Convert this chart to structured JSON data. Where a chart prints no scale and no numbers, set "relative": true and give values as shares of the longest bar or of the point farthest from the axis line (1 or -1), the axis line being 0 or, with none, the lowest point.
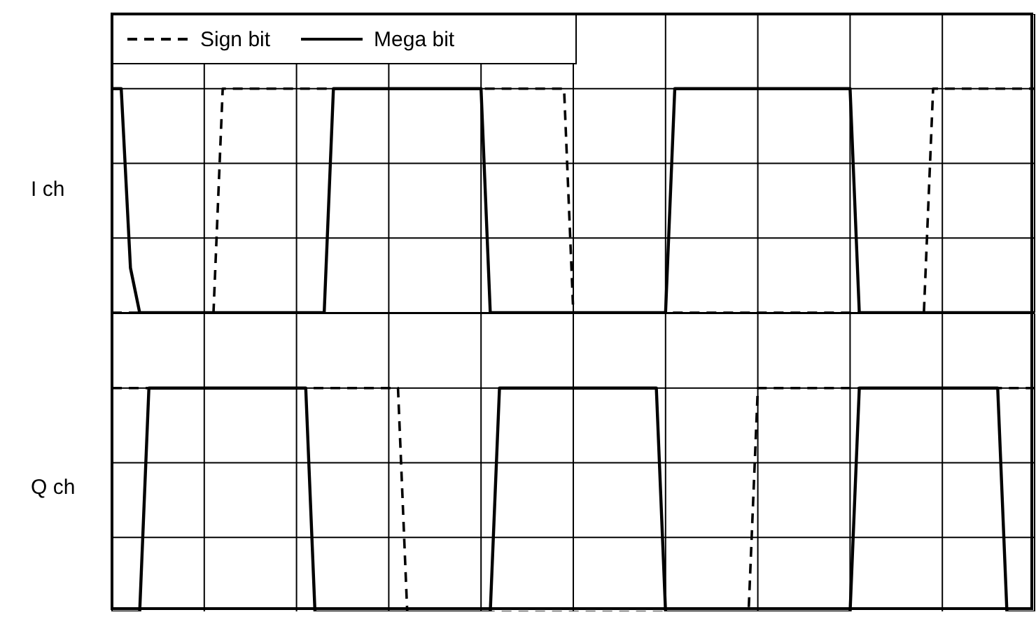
{
  "chart_data": [
    {
      "type": "line",
      "ylabel": "I ch",
      "relative": true,
      "grid": true,
      "legend": "top left",
      "categories": [
        null,
        null,
        null,
        null,
        null,
        null,
        null,
        null,
        null,
        null,
        null,
        null,
        null,
        null,
        null,
        null,
        null,
        null,
        null,
        null,
        null,
        null,
        null,
        null,
        null,
        null,
        null,
        null,
        null,
        null,
        null,
        null,
        null,
        null,
        null,
        null,
        null,
        null,
        null,
        null,
        null,
        null,
        null,
        null,
        null,
        null,
        null,
        null,
        null,
        null,
        null,
        null,
        null,
        null,
        null,
        null,
        null,
        null,
        null,
        null,
        null,
        null,
        null,
        null,
        null,
        null,
        null,
        null,
        null,
        null,
        null,
        null,
        null,
        null,
        null,
        null,
        null,
        null,
        null,
        null,
        null,
        null,
        null,
        null,
        null,
        null,
        null,
        null,
        null,
        null,
        null,
        null,
        null,
        null,
        null,
        null,
        null,
        null,
        null,
        null,
        null
      ],
      "series": [
        {
          "name": "Sign bit",
          "color": "#000000",
          "line_style": "dashed",
          "values": [
            0,
            0,
            0,
            0,
            0,
            0,
            0,
            0,
            0,
            0,
            0,
            0,
            1,
            1,
            1,
            1,
            1,
            1,
            1,
            1,
            1,
            1,
            1,
            1,
            1,
            1,
            1,
            1,
            1,
            1,
            1,
            1,
            1,
            1,
            1,
            1,
            1,
            1,
            1,
            1,
            1,
            1,
            1,
            1,
            1,
            1,
            1,
            1,
            1,
            1,
            0,
            0,
            0,
            0,
            0,
            0,
            0,
            0,
            0,
            0,
            0,
            0,
            0,
            0,
            0,
            0,
            0,
            0,
            0,
            0,
            0,
            0,
            0,
            0,
            0,
            0,
            0,
            0,
            0,
            0,
            0,
            0,
            0,
            0,
            0,
            0,
            0,
            0,
            0,
            1,
            1,
            1,
            1,
            1,
            1,
            1,
            1,
            1,
            1,
            1,
            1
          ]
        },
        {
          "name": "Mega bit",
          "color": "#000000",
          "line_style": "solid",
          "values": [
            1,
            1,
            0.2,
            0,
            0,
            0,
            0,
            0,
            0,
            0,
            0,
            0,
            0,
            0,
            0,
            0,
            0,
            0,
            0,
            0,
            0,
            0,
            0,
            0,
            1,
            1,
            1,
            1,
            1,
            1,
            1,
            1,
            1,
            1,
            1,
            1,
            1,
            1,
            1,
            1,
            1,
            0,
            0,
            0,
            0,
            0,
            0,
            0,
            0,
            0,
            0,
            0,
            0,
            0,
            0,
            0,
            0,
            0,
            0,
            0,
            0,
            1,
            1,
            1,
            1,
            1,
            1,
            1,
            1,
            1,
            1,
            1,
            1,
            1,
            1,
            1,
            1,
            1,
            1,
            1,
            1,
            0,
            0,
            0,
            0,
            0,
            0,
            0,
            0,
            0,
            0,
            0,
            0,
            0,
            0,
            0,
            0,
            0,
            0,
            0,
            0
          ]
        }
      ]
    },
    {
      "type": "line",
      "ylabel": "Q ch",
      "relative": true,
      "grid": true,
      "categories": [
        null,
        null,
        null,
        null,
        null,
        null,
        null,
        null,
        null,
        null,
        null,
        null,
        null,
        null,
        null,
        null,
        null,
        null,
        null,
        null,
        null,
        null,
        null,
        null,
        null,
        null,
        null,
        null,
        null,
        null,
        null,
        null,
        null,
        null,
        null,
        null,
        null,
        null,
        null,
        null,
        null,
        null,
        null,
        null,
        null,
        null,
        null,
        null,
        null,
        null,
        null,
        null,
        null,
        null,
        null,
        null,
        null,
        null,
        null,
        null,
        null,
        null,
        null,
        null,
        null,
        null,
        null,
        null,
        null,
        null,
        null,
        null,
        null,
        null,
        null,
        null,
        null,
        null,
        null,
        null,
        null,
        null,
        null,
        null,
        null,
        null,
        null,
        null,
        null,
        null,
        null,
        null,
        null,
        null,
        null,
        null,
        null,
        null,
        null,
        null,
        null
      ],
      "series": [
        {
          "color": "#000000",
          "line_style": "dashed",
          "values": [
            1,
            1,
            1,
            1,
            1,
            1,
            1,
            1,
            1,
            1,
            1,
            1,
            1,
            1,
            1,
            1,
            1,
            1,
            1,
            1,
            1,
            1,
            1,
            1,
            1,
            1,
            1,
            1,
            1,
            1,
            1,
            1,
            0,
            0,
            0,
            0,
            0,
            0,
            0,
            0,
            0,
            0,
            0,
            0,
            0,
            0,
            0,
            0,
            0,
            0,
            0,
            0,
            0,
            0,
            0,
            0,
            0,
            0,
            0,
            0,
            0,
            0,
            0,
            0,
            0,
            0,
            0,
            0,
            0,
            0,
            1,
            1,
            1,
            1,
            1,
            1,
            1,
            1,
            1,
            1,
            1,
            1,
            1,
            1,
            1,
            1,
            1,
            1,
            1,
            1,
            1,
            1,
            1,
            1,
            1,
            1,
            1,
            1,
            1,
            1,
            1
          ]
        },
        {
          "color": "#000000",
          "line_style": "solid",
          "values": [
            0,
            0,
            0,
            0,
            1,
            1,
            1,
            1,
            1,
            1,
            1,
            1,
            1,
            1,
            1,
            1,
            1,
            1,
            1,
            1,
            1,
            1,
            0,
            0,
            0,
            0,
            0,
            0,
            0,
            0,
            0,
            0,
            0,
            0,
            0,
            0,
            0,
            0,
            0,
            0,
            0,
            0,
            1,
            1,
            1,
            1,
            1,
            1,
            1,
            1,
            1,
            1,
            1,
            1,
            1,
            1,
            1,
            1,
            1,
            1,
            0,
            0,
            0,
            0,
            0,
            0,
            0,
            0,
            0,
            0,
            0,
            0,
            0,
            0,
            0,
            0,
            0,
            0,
            0,
            0,
            0,
            1,
            1,
            1,
            1,
            1,
            1,
            1,
            1,
            1,
            1,
            1,
            1,
            1,
            1,
            1,
            1,
            0,
            0,
            0,
            0
          ]
        }
      ]
    }
  ]
}
